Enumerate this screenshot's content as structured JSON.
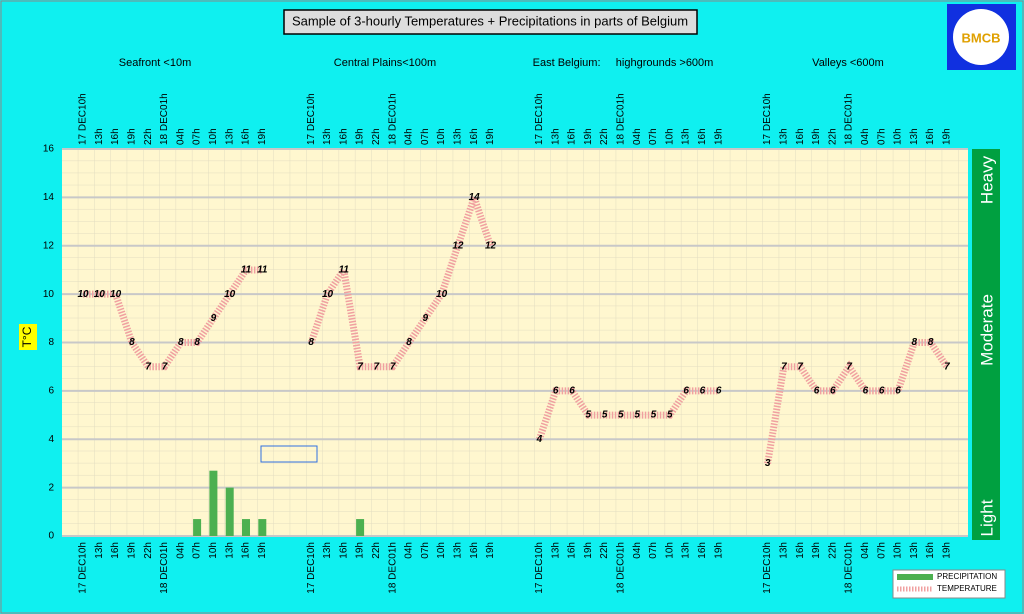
{
  "chart_data": {
    "type": "combo",
    "title": "Sample of 3-hourly Temperatures + Precipitations in parts of Belgium",
    "ylabel": "T°C",
    "logo": "BMCB",
    "group_labels": [
      "Seafront <10m",
      "Central Plains<100m",
      "East Belgium:     highgrounds >600m",
      "Valleys <600m"
    ],
    "intensity_labels": [
      "Heavy",
      "Moderate",
      "Light"
    ],
    "categories": [
      "17 DEC10h",
      "13h",
      "16h",
      "19h",
      "22h",
      "18 DEC01h",
      "04h",
      "07h",
      "10h",
      "13h",
      "16h",
      "19h",
      null,
      null,
      "17 DEC10h",
      "13h",
      "16h",
      "19h",
      "22h",
      "18 DEC01h",
      "04h",
      "07h",
      "10h",
      "13h",
      "16h",
      "19h",
      null,
      null,
      "17 DEC10h",
      "13h",
      "16h",
      "19h",
      "22h",
      "18 DEC01h",
      "04h",
      "07h",
      "10h",
      "13h",
      "16h",
      "19h",
      null,
      null,
      "17 DEC10h",
      "13h",
      "16h",
      "19h",
      "22h",
      "18 DEC01h",
      "04h",
      "07h",
      "10h",
      "13h",
      "16h",
      "19h"
    ],
    "series": [
      {
        "name": "PRECIPITATION",
        "type": "bar",
        "color": "#4cb050",
        "values": [
          0,
          0,
          0,
          0,
          0,
          0,
          0,
          0.7,
          2.7,
          2,
          0.7,
          0.7,
          null,
          null,
          0,
          0,
          0,
          0.7,
          0,
          0,
          0,
          0,
          0,
          0,
          0,
          0,
          null,
          null,
          0,
          0,
          0,
          0,
          0,
          0,
          0,
          0,
          0,
          0,
          0,
          0,
          null,
          null,
          0,
          0,
          0,
          0,
          0,
          0,
          0,
          0,
          0,
          0,
          0,
          0
        ]
      },
      {
        "name": "TEMPERATURE",
        "type": "line",
        "color": "#f0a0a0",
        "values": [
          10,
          10,
          10,
          8,
          7,
          7,
          8,
          8,
          9,
          10,
          11,
          11,
          null,
          null,
          8,
          10,
          11,
          7,
          7,
          7,
          8,
          9,
          10,
          12,
          14,
          12,
          null,
          null,
          4,
          6,
          6,
          5,
          5,
          5,
          5,
          5,
          5,
          6,
          6,
          6,
          null,
          null,
          3,
          7,
          7,
          6,
          6,
          7,
          6,
          6,
          6,
          8,
          8,
          7
        ]
      }
    ],
    "ylim": [
      0,
      16
    ],
    "yticks": [
      0,
      2,
      4,
      6,
      8,
      10,
      12,
      14,
      16
    ],
    "grid": true
  }
}
